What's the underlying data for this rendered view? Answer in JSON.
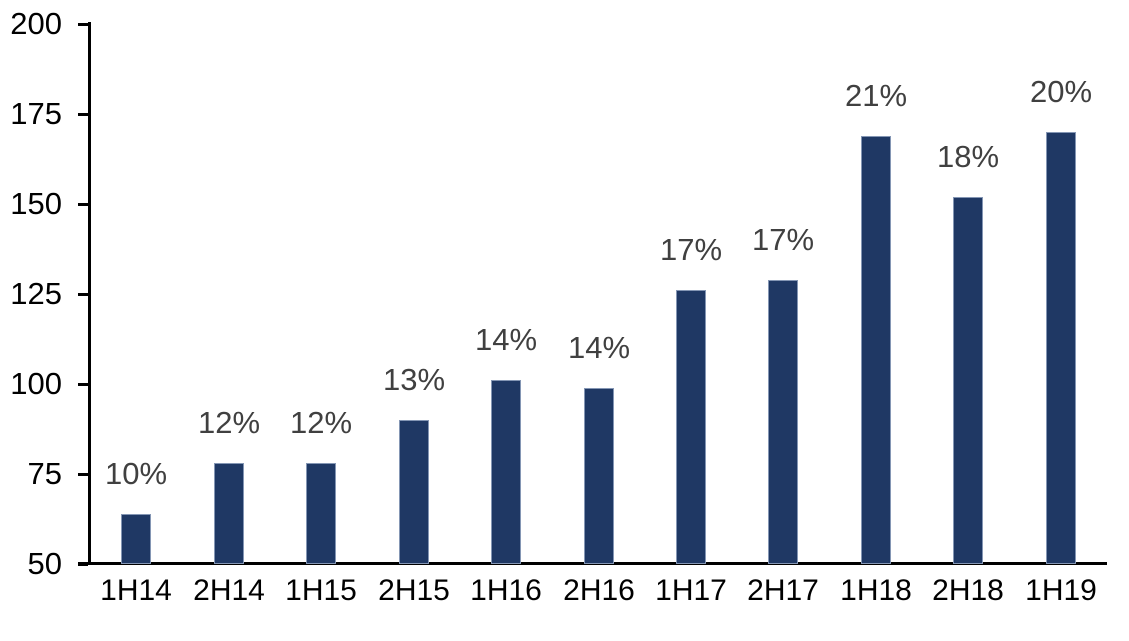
{
  "chart_data": {
    "type": "bar",
    "title": "",
    "xlabel": "",
    "ylabel": "",
    "categories": [
      "1H14",
      "2H14",
      "1H15",
      "2H15",
      "1H16",
      "2H16",
      "1H17",
      "2H17",
      "1H18",
      "2H18",
      "1H19"
    ],
    "values": [
      64,
      78,
      78,
      90,
      101,
      99,
      126,
      129,
      169,
      152,
      170
    ],
    "bar_labels": [
      "10%",
      "12%",
      "12%",
      "13%",
      "14%",
      "14%",
      "17%",
      "17%",
      "21%",
      "18%",
      "20%"
    ],
    "ylim": [
      50,
      200
    ],
    "yticks": [
      50,
      75,
      100,
      125,
      150,
      175,
      200
    ],
    "grid": false,
    "legend": false,
    "bar_color": "#1F3864",
    "bar_label_color": "#404040",
    "axis_color": "#000000",
    "background_color": "#FFFFFF"
  }
}
